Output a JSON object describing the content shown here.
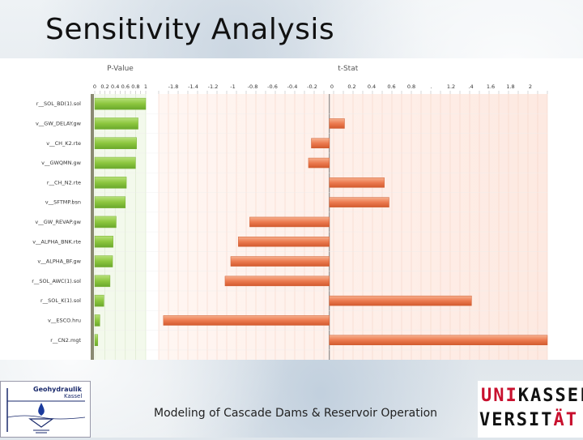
{
  "title": "Sensitivity Analysis",
  "footer": "Modeling of Cascade Dams & Reservoir Operation",
  "logo_left": {
    "line1": "Geohydraulik",
    "line2": "Kassel"
  },
  "logo_right": {
    "line1_red": "UNI",
    "line1_black": "KASSEL",
    "line2_black": "VERSIT",
    "line2_red": "ÄT"
  },
  "colors": {
    "green": "#8cc63e",
    "orange": "#ec7b50",
    "divider": "#8a8a72"
  },
  "chart_data": [
    {
      "type": "bar",
      "orientation": "horizontal",
      "title": "P-Value",
      "categories": [
        "r__SOL_BD(1).sol",
        "v__GW_DELAY.gw",
        "v__CH_K2.rte",
        "v__GWQMN.gw",
        "r__CH_N2.rte",
        "v__SFTMP.bsn",
        "v__GW_REVAP.gw",
        "v__ALPHA_BNK.rte",
        "v__ALPHA_BF.gw",
        "r__SOL_AWC(1).sol",
        "r__SOL_K(1).sol",
        "v__ESCO.hru",
        "r__CN2.mgt"
      ],
      "xticks": [
        "0",
        "0.2",
        "0.4",
        "0.6",
        "0.8",
        "1"
      ],
      "xlim": [
        0,
        1
      ],
      "values": [
        1.0,
        0.85,
        0.82,
        0.8,
        0.62,
        0.6,
        0.42,
        0.36,
        0.35,
        0.3,
        0.18,
        0.1,
        0.06
      ]
    },
    {
      "type": "bar",
      "orientation": "horizontal",
      "title": "t-Stat",
      "categories": [
        "r__SOL_BD(1).sol",
        "v__GW_DELAY.gw",
        "v__CH_K2.rte",
        "v__GWQMN.gw",
        "r__CH_N2.rte",
        "v__SFTMP.bsn",
        "v__GW_REVAP.gw",
        "v__ALPHA_BNK.rte",
        "v__ALPHA_BF.gw",
        "r__SOL_AWC(1).sol",
        "r__SOL_K(1).sol",
        "v__ESCO.hru",
        "r__CN2.mgt"
      ],
      "xticks": [
        "-1.8",
        "-1.4",
        "-1.2",
        "-1",
        "-0.8",
        "-0.6",
        "-0.4",
        "-0.2",
        "0",
        "0.2",
        "0.4",
        "0.6",
        "0.8",
        ".",
        "1.2",
        ".4",
        "1.6",
        "1.8",
        "2"
      ],
      "xlim": [
        -1.8,
        2.3
      ],
      "values": [
        0.0,
        0.16,
        -0.19,
        -0.22,
        0.58,
        0.63,
        -0.84,
        -0.96,
        -1.04,
        -1.1,
        1.5,
        -1.75,
        2.3
      ]
    }
  ]
}
